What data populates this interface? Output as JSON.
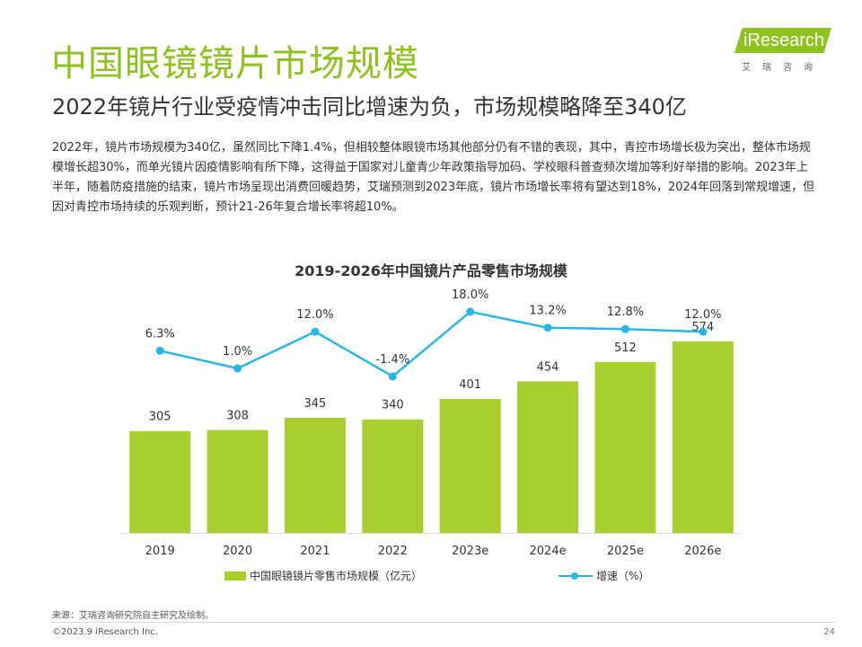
{
  "header": {
    "title": "中国眼镜镜片市场规模",
    "subtitle": "2022年镜片行业受疫情冲击同比增速为负，市场规模略降至340亿"
  },
  "logo": {
    "word": "iResearch",
    "sub": "艾瑞咨询"
  },
  "summary": "2022年，镜片市场规模为340亿，虽然同比下降1.4%，但相较整体眼镜市场其他部分仍有不错的表现，其中，青控市场增长极为突出，整体市场规模增长超30%，而单光镜片因疫情影响有所下降，这得益于国家对儿童青少年政策指导加码、学校眼科普查频次增加等利好举措的影响。2023年上半年，随着防疫措施的结束，镜片市场呈现出消费回暖趋势，艾瑞预测到2023年底，镜片市场增长率将有望达到18%，2024年回落到常规增速，但因对青控市场持续的乐观判断，预计21-26年复合增长率将超10%。",
  "chart_data": {
    "type": "bar",
    "title": "2019-2026年中国镜片产品零售市场规模",
    "categories": [
      "2019",
      "2020",
      "2021",
      "2022",
      "2023e",
      "2024e",
      "2025e",
      "2026e"
    ],
    "series": [
      {
        "name": "中国眼镜镜片零售市场规模（亿元）",
        "type": "bar",
        "color": "#a8cf2e",
        "values": [
          305,
          308,
          345,
          340,
          401,
          454,
          512,
          574
        ],
        "labels": [
          "305",
          "308",
          "345",
          "340",
          "401",
          "454",
          "512",
          "574"
        ]
      },
      {
        "name": "增速（%）",
        "type": "line",
        "color": "#29b6e6",
        "values": [
          6.3,
          1.0,
          12.0,
          -1.4,
          18.0,
          13.2,
          12.8,
          12.0
        ],
        "labels": [
          "6.3%",
          "1.0%",
          "12.0%",
          "-1.4%",
          "18.0%",
          "13.2%",
          "12.8%",
          "12.0%"
        ]
      }
    ],
    "legend_position": "bottom",
    "grid": false
  },
  "footer": {
    "source": "来源：艾瑞咨询研究院自主研究及绘制。",
    "copyright": "©2023.9 iResearch Inc.",
    "page_number": "24"
  }
}
